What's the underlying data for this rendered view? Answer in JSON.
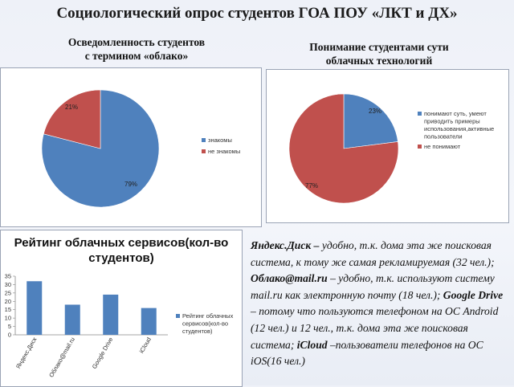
{
  "slide_title": "Социологический опрос студентов ГОА ПОУ «ЛКТ и ДХ»",
  "pie1_heading": "Осведомленность студентов\nс  термином «облако»",
  "pie2_heading": "Понимание студентами сути\nоблачных технологий",
  "description": {
    "p1_name": "Яндекс.Диск –",
    "p1_text": " удобно, т.к. дома эта же поисковая система, к тому же самая рекламируемая (32 чел.); ",
    "p2_name": "Облако@mail.ru",
    "p2_text": " – удобно, т.к.  используют систему mail.ru как электронную почту  (18 чел.); ",
    "p3_name": "Google Drive",
    "p3_text": " – потому что пользуются телефоном на ОС Android (12 чел.) и 12 чел., т.к. дома эта же поисковая система; ",
    "p4_name": "iCloud",
    "p4_text": " –пользователи телефонов на ОС iOS(16 чел.)"
  },
  "colors": {
    "blue": "#4f81bd",
    "red": "#c0504d"
  },
  "chart_data": [
    {
      "type": "pie",
      "title": "Осведомленность студентов с  термином «облако»",
      "slices": [
        {
          "label": "знакомы",
          "value": 79,
          "display": "79%",
          "color": "#4f81bd"
        },
        {
          "label": "не знакомы",
          "value": 21,
          "display": "21%",
          "color": "#c0504d"
        }
      ],
      "legend_position": "right"
    },
    {
      "type": "pie",
      "title": "Понимание студентами сути облачных технологий",
      "slices": [
        {
          "label": "понимают суть, умеют приводить примеры использования,активные пользователи",
          "value": 23,
          "display": "23%",
          "color": "#4f81bd"
        },
        {
          "label": "не понимают",
          "value": 77,
          "display": "77%",
          "color": "#c0504d"
        }
      ],
      "legend_position": "right"
    },
    {
      "type": "bar",
      "title": "Рейтинг облачных сервисов(кол-во студентов)",
      "categories": [
        "Яндекс.Диск",
        "Облако@mail.ru",
        "Google Drive",
        "iCloud"
      ],
      "series": [
        {
          "name": "Рейтинг облачных сервисов(кол-во студентов)",
          "values": [
            32,
            18,
            24,
            16
          ],
          "color": "#4f81bd"
        }
      ],
      "y_ticks": [
        "0",
        "5",
        "10",
        "15",
        "20",
        "25",
        "30",
        "35"
      ],
      "ylim": [
        0,
        35
      ],
      "legend_position": "right"
    }
  ]
}
